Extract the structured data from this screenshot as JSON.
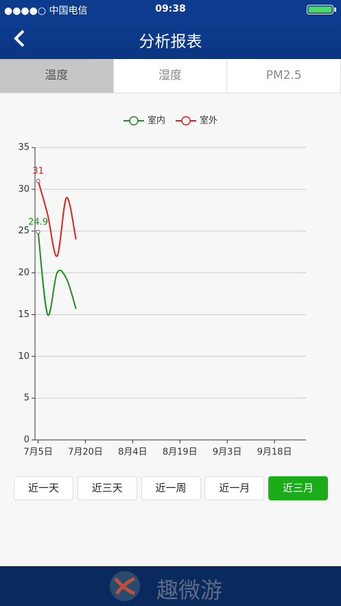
{
  "status_bar": {
    "carrier": "●●●●○ 中国电信",
    "time": "09:38"
  },
  "header": {
    "title": "分析报表"
  },
  "tabs": [
    {
      "label": "温度",
      "selected": true
    },
    {
      "label": "湿度",
      "selected": false
    },
    {
      "label": "PM2.5",
      "selected": false
    }
  ],
  "chart_data": {
    "type": "line",
    "smooth": true,
    "data_labels": "first",
    "grid": true,
    "legend": "top",
    "x": [
      "7月5日",
      "7月8日",
      "7月11日",
      "7月14日",
      "7月17日"
    ],
    "series": [
      {
        "name": "室内",
        "color": "#1e8c1e",
        "values": [
          24.9,
          15,
          20,
          19.3,
          15.7
        ]
      },
      {
        "name": "室外",
        "color": "#e0201e",
        "values": [
          31,
          27,
          22,
          29,
          24
        ]
      }
    ],
    "xlim": [
      "7月4日",
      "9月28日"
    ],
    "xticks": [
      "7月5日",
      "7月20日",
      "8月4日",
      "8月19日",
      "9月3日",
      "9月18日"
    ],
    "ylim": [
      0,
      35
    ],
    "yticks": [
      0,
      5,
      10,
      15,
      20,
      25,
      30,
      35
    ]
  },
  "buttons": [
    {
      "label": "近一天",
      "selected": false
    },
    {
      "label": "近三天",
      "selected": false
    },
    {
      "label": "近一周",
      "selected": false
    },
    {
      "label": "近一月",
      "selected": false
    },
    {
      "label": "近三月",
      "selected": true
    }
  ],
  "footer": {
    "brand": "趣微游"
  }
}
